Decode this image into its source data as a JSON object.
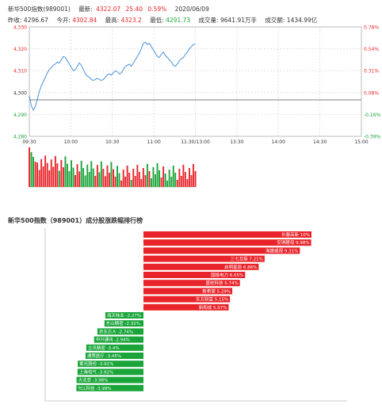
{
  "header": {
    "name": "新华500指数(989001)",
    "latest_label": "最新:",
    "latest_value": "4322.07",
    "change": "25.40",
    "change_pct": "0.59%",
    "date": "2020/06/09",
    "prev_close_label": "昨收:",
    "prev_close_value": "4296.67",
    "open_label": "今开:",
    "open_value": "4302.84",
    "high_label": "最高:",
    "high_value": "4323.2",
    "low_label": "最低:",
    "low_value": "4291.73",
    "volume_label": "成交量:",
    "volume_value": "9641.91万手",
    "amount_label": "成交额:",
    "amount_value": "1434.99亿"
  },
  "colors": {
    "up": "#e8242a",
    "down": "#1aa53a",
    "line": "#4a90d9"
  },
  "chart_data": [
    {
      "type": "line",
      "title": "",
      "x_ticks": [
        "09:30",
        "10:00",
        "10:30",
        "11:00",
        "11:30/13:00",
        "13:30",
        "14:00",
        "14:30",
        "15:00"
      ],
      "y_ticks_left": [
        "4,330",
        "4,320",
        "4,310",
        "4,300",
        "4,290",
        "4,280"
      ],
      "y_ticks_right": [
        "0.78%",
        "0.54%",
        "0.31%",
        "0.08%",
        "-0.16%",
        "-0.39%"
      ],
      "ylim": [
        4280,
        4330
      ],
      "prev_close": 4296.67,
      "series": [
        {
          "values": [
            4298.5,
            4294,
            4292,
            4293.5,
            4297,
            4300.5,
            4303,
            4305,
            4307,
            4309,
            4310.5,
            4311.5,
            4312.5,
            4313,
            4314,
            4313.5,
            4315,
            4316.5,
            4316,
            4314.5,
            4313,
            4311.5,
            4310,
            4310.5,
            4312,
            4313.5,
            4312.5,
            4310.5,
            4308.5,
            4307.5,
            4307,
            4306,
            4305.5,
            4306,
            4306.5,
            4306,
            4305.5,
            4306,
            4307,
            4308,
            4308.5,
            4308,
            4309,
            4310,
            4309.5,
            4308.5,
            4309,
            4310.5,
            4312,
            4312.5,
            4313,
            4312,
            4313.5,
            4315,
            4316.5,
            4318,
            4320,
            4322.5,
            4323,
            4322,
            4322.5,
            4321,
            4319.5,
            4318,
            4316.5,
            4316,
            4317.5,
            4318.5,
            4317,
            4316,
            4315,
            4314,
            4312.5,
            4312,
            4313,
            4314.5,
            4315.5,
            4316,
            4317.5,
            4318.5,
            4320,
            4321,
            4322,
            4322.07
          ]
        }
      ]
    },
    {
      "type": "bar",
      "title": "新华500指数（989001）成分股涨跌幅排行榜",
      "categories": [
        "长春高新",
        "安琪酵母",
        "海康威视",
        "三七互娱",
        "启明星辰",
        "国投电力",
        "盛屹科技",
        "新希望",
        "东方财富",
        "新和成",
        "海天味业",
        "东山精密",
        "京东方Ａ",
        "中兴通讯",
        "立讯精密",
        "通策医疗",
        "紫光股份",
        "上海电气",
        "大北农",
        "TCL科技"
      ],
      "labels": [
        "长春高新 10%",
        "安琪酵母 9.98%",
        "海康威视 9.31%",
        "三七互娱 7.21%",
        "启明星辰 6.86%",
        "国投电力 6.05%",
        "盛屹科技 5.74%",
        "新希望 5.29%",
        "东方财富 5.15%",
        "新和成 5.07%",
        "海天味业 -2.27%",
        "东山精密 -2.32%",
        "京东方Ａ -2.74%",
        "中兴通讯 -2.94%",
        "立讯精密 -3.4%",
        "通策医疗 -3.45%",
        "紫光股份 -3.91%",
        "上海电气 -3.92%",
        "大北农 -3.98%",
        "TCL科技 -3.99%"
      ],
      "values": [
        10,
        9.98,
        9.31,
        7.21,
        6.86,
        6.05,
        5.74,
        5.29,
        5.15,
        5.07,
        -2.27,
        -2.32,
        -2.74,
        -2.94,
        -3.4,
        -3.45,
        -3.91,
        -3.92,
        -3.98,
        -3.99
      ]
    }
  ]
}
